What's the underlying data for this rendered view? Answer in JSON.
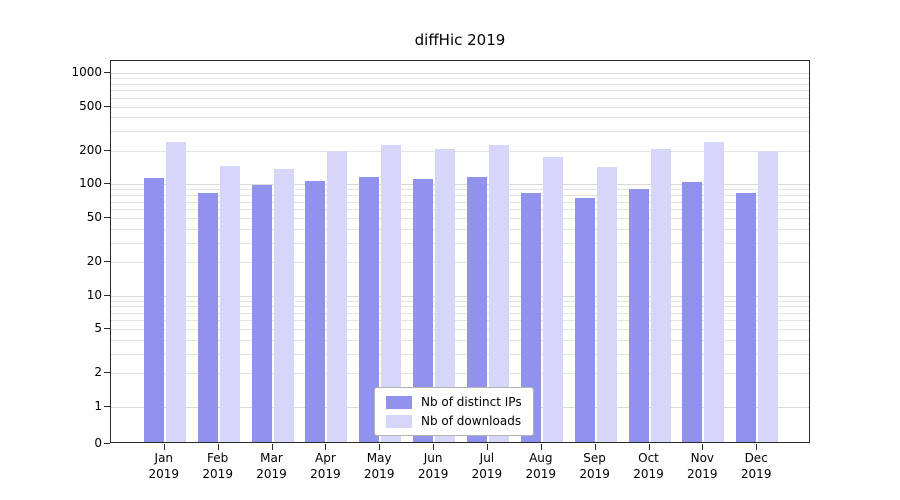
{
  "chart_data": {
    "type": "bar",
    "title": "diffHic 2019",
    "categories": [
      "Jan",
      "Feb",
      "Mar",
      "Apr",
      "May",
      "Jun",
      "Jul",
      "Aug",
      "Sep",
      "Oct",
      "Nov",
      "Dec"
    ],
    "category_year": "2019",
    "series": [
      {
        "name": "Nb of distinct IPs",
        "color": "#9191ee",
        "values": [
          110,
          80,
          95,
          103,
          112,
          107,
          112,
          80,
          73,
          88,
          100,
          80
        ]
      },
      {
        "name": "Nb of downloads",
        "color": "#d6d6f8",
        "values": [
          230,
          140,
          132,
          192,
          215,
          200,
          215,
          168,
          138,
          200,
          230,
          190
        ]
      }
    ],
    "yscale": "log",
    "yticks": [
      0,
      1,
      2,
      5,
      10,
      20,
      50,
      100,
      200,
      500,
      1000
    ],
    "ylim": [
      0,
      1280
    ],
    "grid": true,
    "legend_position": "inside-bottom-center"
  }
}
